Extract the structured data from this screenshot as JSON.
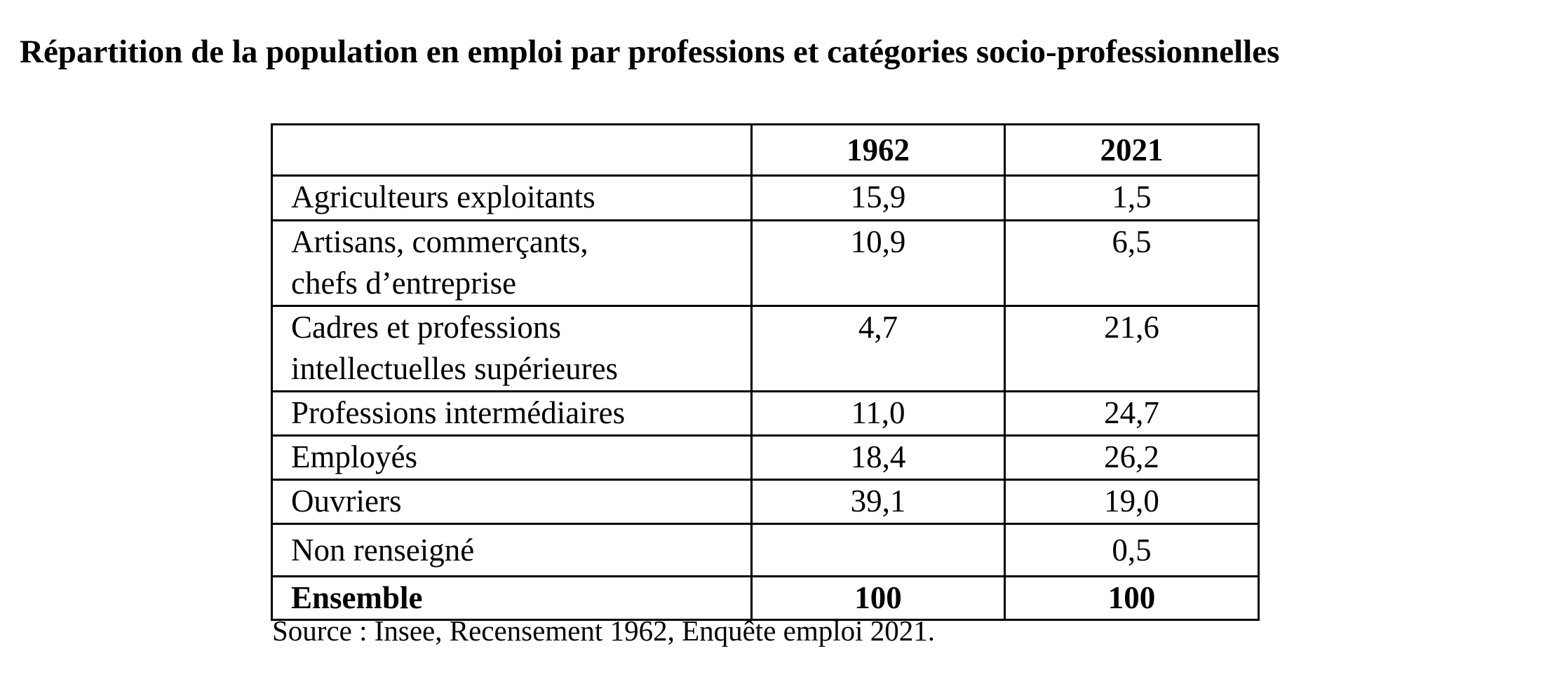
{
  "title": "Répartition de la population en emploi par professions et catégories socio-professionnelles",
  "table": {
    "header": [
      "",
      "1962",
      "2021"
    ],
    "rows": [
      {
        "label_lines": [
          "Agriculteurs exploitants"
        ],
        "v1962": "15,9",
        "v2021": "1,5"
      },
      {
        "label_lines": [
          "Artisans, commerçants,",
          "chefs d’entreprise"
        ],
        "v1962": "10,9",
        "v2021": "6,5"
      },
      {
        "label_lines": [
          "Cadres et professions",
          "intellectuelles supérieures"
        ],
        "v1962": "4,7",
        "v2021": "21,6"
      },
      {
        "label_lines": [
          "Professions intermédiaires"
        ],
        "v1962": "11,0",
        "v2021": "24,7"
      },
      {
        "label_lines": [
          "Employés"
        ],
        "v1962": "18,4",
        "v2021": "26,2"
      },
      {
        "label_lines": [
          "Ouvriers"
        ],
        "v1962": "39,1",
        "v2021": "19,0"
      },
      {
        "label_lines": [
          "Non renseigné"
        ],
        "v1962": "",
        "v2021": "0,5"
      }
    ],
    "total": {
      "label": "Ensemble",
      "v1962": "100",
      "v2021": "100"
    }
  },
  "source": "Source : Insee, Recensement 1962, Enquête emploi 2021."
}
